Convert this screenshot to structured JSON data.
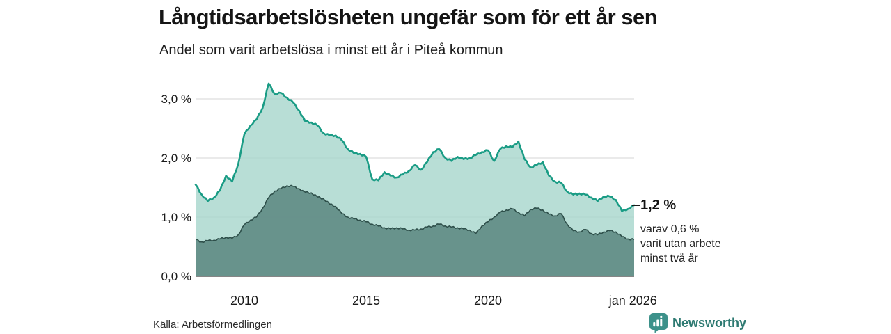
{
  "header": {
    "title": "Långtidsarbetslösheten ungefär som för ett år sen",
    "subtitle": "Andel som varit arbetslösa i minst ett år i Piteå kommun"
  },
  "annotations": {
    "latest_value": "1,2 %",
    "sub_lines": [
      "varav 0,6 %",
      "varit utan arbete",
      "minst två år"
    ]
  },
  "footer": {
    "source": "Källa: Arbetsförmedlingen",
    "brand": "Newsworthy"
  },
  "colors": {
    "series1_line": "#1a9c85",
    "series1_fill": "#a8d7cd",
    "series2_line": "#2e4f4a",
    "series2_fill": "#628d86",
    "gridline": "#d6d6d6",
    "axis": "#3d3d3d",
    "brand_teal": "#2e7a72",
    "brand_icon": "#3c918a"
  },
  "chart_data": {
    "type": "area",
    "title": "Långtidsarbetslösheten ungefär som för ett år sen",
    "subtitle": "Andel som varit arbetslösa i minst ett år i Piteå kommun",
    "x_start": 2008,
    "x_step": 0.25,
    "xlim": [
      2008,
      2026.08
    ],
    "ylim": [
      0,
      3.45
    ],
    "grid": true,
    "legend": "none",
    "yticks": [
      {
        "value": 0,
        "label": "0,0 %"
      },
      {
        "value": 1,
        "label": "1,0 %"
      },
      {
        "value": 2,
        "label": "2,0 %"
      },
      {
        "value": 3,
        "label": "3,0 %"
      }
    ],
    "xticks": [
      {
        "value": 2010,
        "label": "2010"
      },
      {
        "value": 2015,
        "label": "2015"
      },
      {
        "value": 2020,
        "label": "2020"
      },
      {
        "value": 2025.95,
        "label": "jan 2026"
      }
    ],
    "series": [
      {
        "name": "Arbetslösa minst ett år",
        "end_label": "1,2 %",
        "line_color": "#1a9c85",
        "fill_color": "#a8d7cd",
        "values": [
          1.55,
          1.38,
          1.27,
          1.33,
          1.45,
          1.7,
          1.6,
          1.9,
          2.4,
          2.55,
          2.65,
          2.85,
          3.26,
          3.08,
          3.1,
          3.02,
          2.94,
          2.8,
          2.62,
          2.6,
          2.55,
          2.42,
          2.38,
          2.38,
          2.3,
          2.15,
          2.08,
          2.07,
          2.02,
          1.64,
          1.62,
          1.76,
          1.7,
          1.67,
          1.72,
          1.78,
          1.88,
          1.8,
          1.93,
          2.1,
          2.15,
          2.0,
          1.95,
          2.02,
          1.98,
          2.0,
          2.05,
          2.1,
          2.13,
          1.95,
          2.15,
          2.2,
          2.18,
          2.28,
          1.98,
          1.84,
          1.88,
          1.93,
          1.7,
          1.6,
          1.58,
          1.43,
          1.38,
          1.4,
          1.38,
          1.33,
          1.27,
          1.35,
          1.35,
          1.29,
          1.1,
          1.14,
          1.2
        ]
      },
      {
        "name": "Arbetslösa minst två år",
        "end_label": "0,6 %",
        "line_color": "#2e4f4a",
        "fill_color": "#628d86",
        "values": [
          0.62,
          0.58,
          0.6,
          0.61,
          0.63,
          0.66,
          0.64,
          0.7,
          0.87,
          0.95,
          1.0,
          1.15,
          1.33,
          1.44,
          1.48,
          1.53,
          1.52,
          1.48,
          1.42,
          1.41,
          1.34,
          1.31,
          1.22,
          1.18,
          1.06,
          1.0,
          0.97,
          0.95,
          0.92,
          0.88,
          0.85,
          0.82,
          0.8,
          0.82,
          0.8,
          0.78,
          0.78,
          0.8,
          0.83,
          0.85,
          0.88,
          0.85,
          0.83,
          0.82,
          0.8,
          0.78,
          0.72,
          0.85,
          0.92,
          1.0,
          1.08,
          1.12,
          1.14,
          1.08,
          1.02,
          1.13,
          1.15,
          1.12,
          1.05,
          1.02,
          1.06,
          0.88,
          0.77,
          0.75,
          0.79,
          0.72,
          0.7,
          0.75,
          0.77,
          0.75,
          0.67,
          0.63,
          0.62
        ]
      }
    ]
  }
}
